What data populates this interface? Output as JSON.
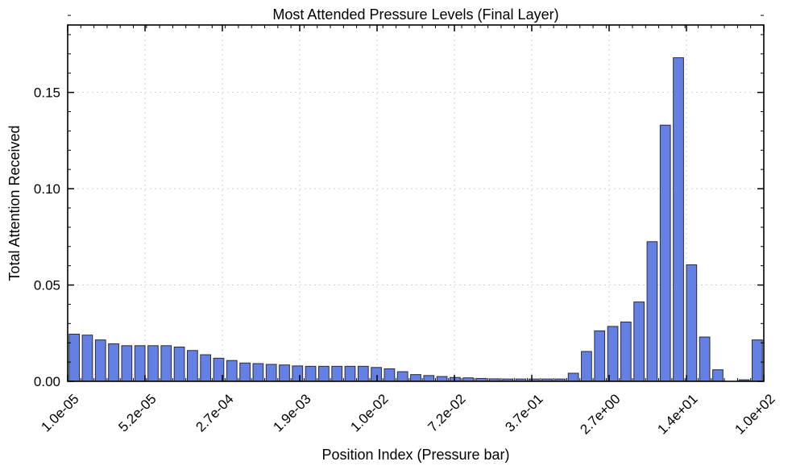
{
  "chart_data": {
    "type": "bar",
    "title": "Most Attended Pressure Levels (Final Layer)",
    "xlabel": "Position Index (Pressure bar)",
    "ylabel": "Total Attention Received",
    "ylim": [
      0,
      0.185
    ],
    "y_ticks": [
      "0.00",
      "0.05",
      "0.10",
      "0.15"
    ],
    "x_tick_labels": [
      "1.0e-05",
      "5.2e-05",
      "2.7e-04",
      "1.9e-03",
      "1.0e-02",
      "7.2e-02",
      "3.7e-01",
      "2.7e+00",
      "1.4e+01",
      "1.0e+02"
    ],
    "values": [
      0.0245,
      0.024,
      0.0215,
      0.0195,
      0.0185,
      0.0185,
      0.0185,
      0.0185,
      0.0178,
      0.016,
      0.0138,
      0.012,
      0.0108,
      0.0095,
      0.0092,
      0.0088,
      0.0085,
      0.008,
      0.0078,
      0.0078,
      0.0078,
      0.0078,
      0.0078,
      0.0072,
      0.0065,
      0.005,
      0.0035,
      0.003,
      0.0025,
      0.002,
      0.0018,
      0.0015,
      0.0013,
      0.0012,
      0.0012,
      0.0012,
      0.0012,
      0.0012,
      0.0042,
      0.0155,
      0.0262,
      0.0285,
      0.0308,
      0.0412,
      0.0725,
      0.133,
      0.168,
      0.0605,
      0.023,
      0.006,
      0.0,
      0.0008,
      0.0215
    ],
    "grid": true,
    "bar_color": "#6580E3",
    "edge_color": "#2a2a3a"
  }
}
